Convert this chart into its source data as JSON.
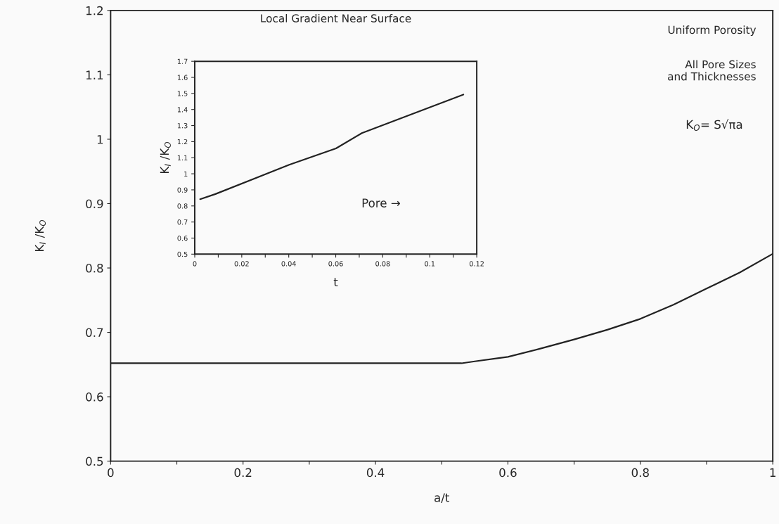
{
  "chart_data": [
    {
      "type": "line",
      "xlabel": "a/t",
      "ylabel": "K$_{I}$ /K$_{O}$",
      "x": [
        0,
        0.1,
        0.2,
        0.3,
        0.4,
        0.53,
        0.55,
        0.6,
        0.65,
        0.7,
        0.75,
        0.8,
        0.85,
        0.9,
        0.95,
        1.0
      ],
      "series": [
        {
          "color": "#222222",
          "values": [
            0.652,
            0.652,
            0.652,
            0.652,
            0.652,
            0.652,
            0.655,
            0.662,
            0.675,
            0.689,
            0.704,
            0.721,
            0.743,
            0.768,
            0.793,
            0.822
          ]
        }
      ],
      "xlim": [
        0,
        1
      ],
      "ylim": [
        0.5,
        1.2
      ],
      "xticks": [
        0,
        {
          "value": 0.1,
          "label": null
        },
        0.2,
        {
          "value": 0.3,
          "label": null
        },
        0.4,
        {
          "value": 0.5,
          "label": null
        },
        0.6,
        {
          "value": 0.7,
          "label": null
        },
        0.8,
        {
          "value": 0.9,
          "label": null
        },
        1
      ],
      "yticks": [
        0.5,
        0.6,
        0.7,
        0.8,
        0.9,
        1,
        1.1,
        1.2
      ],
      "annotations": [
        "Uniform Porosity",
        "All Pore Sizes\nand Thicknesses",
        "K$_{O}$= S√πa"
      ]
    },
    {
      "type": "line",
      "title": "Local Gradient Near Surface",
      "xlabel": "t",
      "ylabel": "K$_{I}$ /K$_{O}$",
      "x": [
        0.0023,
        0.0088,
        0.0402,
        0.0601,
        0.0711,
        0.1143
      ],
      "series": [
        {
          "color": "#222222",
          "values": [
            0.842,
            0.874,
            1.056,
            1.158,
            1.253,
            1.493
          ]
        }
      ],
      "xlim": [
        0,
        0.12
      ],
      "ylim": [
        0.5,
        1.7
      ],
      "xticks": [
        0,
        {
          "value": 0.01,
          "label": null
        },
        0.02,
        {
          "value": 0.03,
          "label": null
        },
        0.04,
        {
          "value": 0.05,
          "label": null
        },
        0.06,
        {
          "value": 0.07,
          "label": null
        },
        0.08,
        {
          "value": 0.09,
          "label": null
        },
        0.1,
        {
          "value": 0.11,
          "label": null
        },
        0.12
      ],
      "yticks": [
        0.5,
        0.6,
        0.7,
        0.8,
        0.9,
        1,
        1.1,
        1.2,
        1.3,
        1.4,
        1.5,
        1.6,
        1.7
      ],
      "annotations": [
        "Pore →"
      ]
    }
  ]
}
